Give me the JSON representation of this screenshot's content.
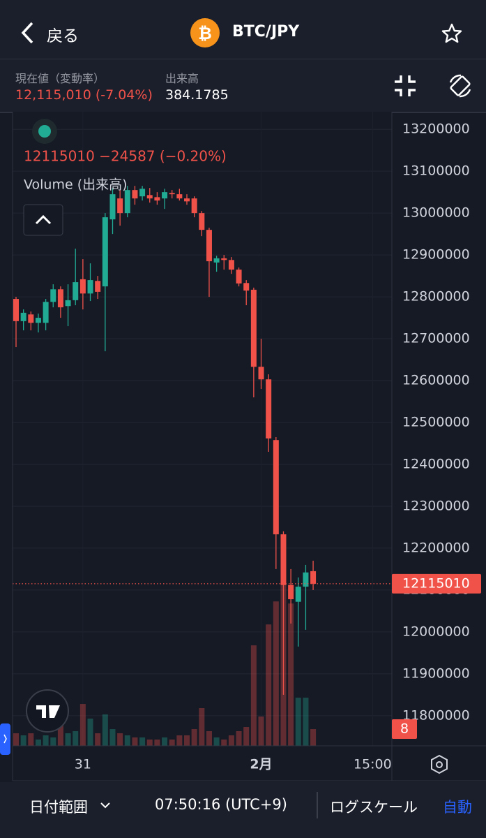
{
  "header": {
    "back": "戻る",
    "title": "BTC/JPY"
  },
  "stats": {
    "price_label": "現在値（変動率）",
    "price": "12,115,010 (-7.04%)",
    "volume_label": "出来高",
    "volume": "384.1785"
  },
  "chart_data": {
    "type": "candlestick",
    "legend": {
      "ohlc": "12115010 −24587 (−0.20%)",
      "volume": "Volume (出来高)"
    },
    "last_price": 12115010,
    "open": [
      12795000,
      12742000,
      12758000,
      12738000,
      12738000,
      12788000,
      12818000,
      12778000,
      12792000,
      12842000,
      12808000,
      12838000,
      12825000,
      12985000,
      13035000,
      13000000,
      13055000,
      13040000,
      13043000,
      13038000,
      13035000,
      13048000,
      13045000,
      13035000,
      13035000,
      13000000,
      12960000,
      12882000,
      12892000,
      12888000,
      12865000,
      12833000,
      12817000,
      12633000,
      12603000,
      12458000,
      12233000,
      12112000,
      12072000,
      12108000,
      12145000
    ],
    "high": [
      12800000,
      12770000,
      12765000,
      12760000,
      12795000,
      12830000,
      12825000,
      12830000,
      12915000,
      12890000,
      12880000,
      12850000,
      13000000,
      13060000,
      13055000,
      13065000,
      13065000,
      13065000,
      13060000,
      13050000,
      13058000,
      13055000,
      13058000,
      13045000,
      13040000,
      13005000,
      12965000,
      12898000,
      12900000,
      12895000,
      12870000,
      12840000,
      12822000,
      12700000,
      12615000,
      12465000,
      12240000,
      12150000,
      12130000,
      12160000,
      12170000
    ],
    "low": [
      12680000,
      12720000,
      12720000,
      12715000,
      12720000,
      12775000,
      12750000,
      12730000,
      12780000,
      12770000,
      12790000,
      12795000,
      12670000,
      12950000,
      12970000,
      12990000,
      13020000,
      13030000,
      13025000,
      13020000,
      13010000,
      13035000,
      13030000,
      13020000,
      12990000,
      12945000,
      12800000,
      12860000,
      12865000,
      12855000,
      12825000,
      12780000,
      12560000,
      12580000,
      12430000,
      12150000,
      11850000,
      12020000,
      11965000,
      12005000,
      12100000
    ],
    "close": [
      12742000,
      12762000,
      12738000,
      12750000,
      12788000,
      12818000,
      12775000,
      12792000,
      12835000,
      12808000,
      12840000,
      12812000,
      12990000,
      13045000,
      13000000,
      13055000,
      13035000,
      13058000,
      13035000,
      13030000,
      13050000,
      13045000,
      13035000,
      13028000,
      13000000,
      12960000,
      12885000,
      12892000,
      12888000,
      12865000,
      12832000,
      12815000,
      12633000,
      12603000,
      12462000,
      12233000,
      12112000,
      12078000,
      12108000,
      12142000,
      12115000
    ],
    "volume": [
      6,
      5,
      6,
      3,
      5,
      4,
      10,
      6,
      7,
      20,
      13,
      6,
      15,
      8,
      6,
      5,
      4,
      4,
      3,
      3,
      4,
      3,
      5,
      5,
      8,
      18,
      7,
      4,
      3,
      5,
      7,
      9,
      48,
      14,
      58,
      69,
      78,
      68,
      23,
      23,
      8
    ],
    "ylim": [
      11728000,
      13242000
    ],
    "yticks": [
      11800000,
      11900000,
      12000000,
      12100000,
      12200000,
      12300000,
      12400000,
      12500000,
      12600000,
      12700000,
      12800000,
      12900000,
      13000000,
      13100000,
      13200000
    ],
    "y2lim": [
      0,
      303
    ],
    "xlim": [
      -0.47,
      50.6
    ],
    "xticks": [
      {
        "value": 9,
        "label": "31"
      },
      {
        "value": 33,
        "label": "2月"
      },
      {
        "value": 48,
        "label": "15:00"
      }
    ],
    "colors": {
      "up": "#22ab94",
      "down": "#f0524a"
    },
    "grid": true
  },
  "toolbar": {
    "range": "日付範囲",
    "time": "07:50:16 (UTC+9)",
    "log": "ログスケール",
    "auto": "自動"
  }
}
